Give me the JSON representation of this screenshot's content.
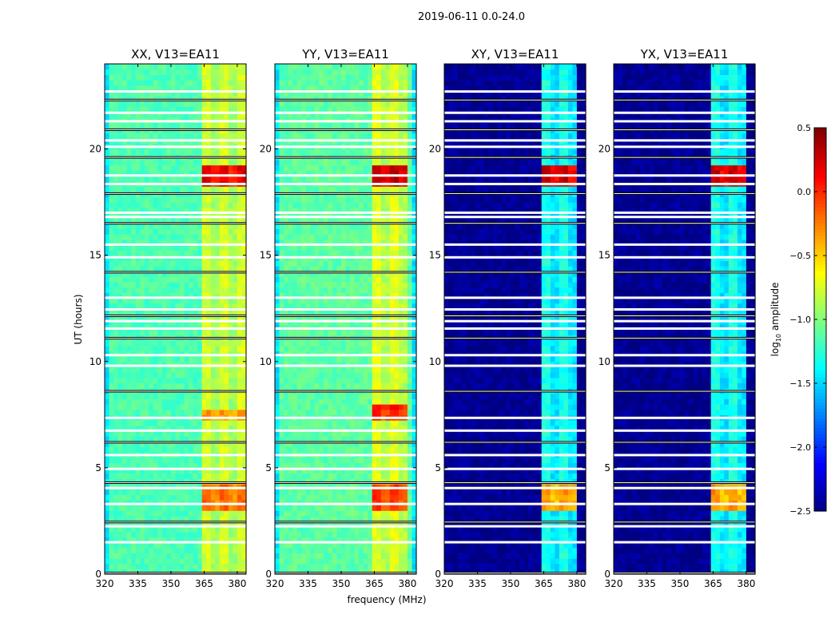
{
  "chart_data": {
    "type": "heatmap",
    "suptitle": "2019-06-11 0.0-24.0",
    "xlabel": "frequency (MHz)",
    "ylabel": "UT (hours)",
    "xlim": [
      320,
      384
    ],
    "ylim": [
      0,
      24
    ],
    "xticks": [
      320,
      335,
      350,
      365,
      380
    ],
    "yticks": [
      0,
      5,
      10,
      15,
      20
    ],
    "colorbar": {
      "label": "log10 amplitude",
      "label_main": "log",
      "label_sub": "10",
      "label_rest": " amplitude",
      "range": [
        -2.5,
        0.5
      ],
      "ticks": [
        "0.5",
        "0.0",
        "−0.5",
        "−1.0",
        "−1.5",
        "−2.0",
        "−2.5"
      ],
      "tick_values": [
        0.5,
        0.0,
        -0.5,
        -1.0,
        -1.5,
        -2.0,
        -2.5
      ],
      "colormap": "jet"
    },
    "panels": [
      {
        "title": "XX, V13=EA11",
        "background": -1.15,
        "band": [
          363,
          383
        ],
        "band_value": -0.75,
        "edge_value": -1.45,
        "hot": [
          [
            3.0,
            4.1,
            -0.15
          ],
          [
            7.1,
            7.6,
            -0.3
          ],
          [
            18.2,
            19.1,
            0.2
          ]
        ]
      },
      {
        "title": "YY, V13=EA11",
        "background": -1.1,
        "band": [
          363,
          380
        ],
        "band_value": -0.7,
        "edge_value": -1.45,
        "hot": [
          [
            3.0,
            4.1,
            0.0
          ],
          [
            7.1,
            8.0,
            0.1
          ],
          [
            18.2,
            19.1,
            0.35
          ]
        ]
      },
      {
        "title": "XY, V13=EA11",
        "background": -2.45,
        "band": [
          363,
          380
        ],
        "band_value": -1.3,
        "edge_value": -2.45,
        "hot": [
          [
            3.0,
            4.1,
            -0.3
          ],
          [
            18.2,
            19.1,
            0.3
          ]
        ]
      },
      {
        "title": "YX, V13=EA11",
        "background": -2.45,
        "band": [
          363,
          380
        ],
        "band_value": -1.3,
        "edge_value": -2.45,
        "hot": [
          [
            3.0,
            4.1,
            -0.3
          ],
          [
            18.2,
            19.1,
            0.3
          ]
        ]
      }
    ],
    "flagged_hours": [
      0.05,
      1.5,
      2.25,
      2.45,
      3.3,
      4.05,
      4.3,
      4.95,
      5.6,
      6.2,
      6.75,
      7.35,
      8.6,
      9.8,
      10.3,
      11.1,
      11.55,
      11.9,
      12.15,
      12.45,
      13.0,
      14.2,
      14.9,
      15.5,
      16.5,
      16.8,
      17.0,
      17.9,
      18.35,
      18.75,
      19.6,
      20.1,
      20.4,
      20.9,
      21.3,
      21.7,
      22.3,
      22.7
    ]
  }
}
